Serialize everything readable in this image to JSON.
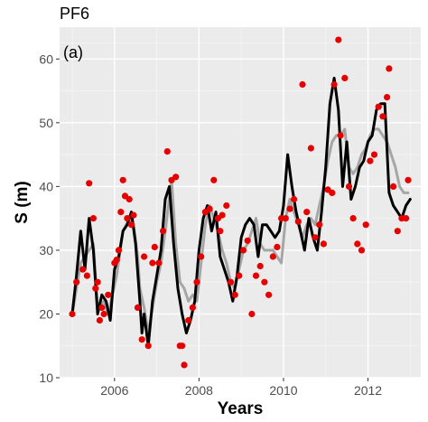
{
  "chart_data": {
    "type": "line",
    "title": "PF6",
    "panel_label": "(a)",
    "xlabel": "Years",
    "ylabel": "S (m)",
    "xlim": [
      2004.7,
      2013.25
    ],
    "ylim": [
      10,
      65
    ],
    "xticks": [
      2006,
      2008,
      2010,
      2012
    ],
    "yticks": [
      10,
      20,
      30,
      40,
      50,
      60
    ],
    "grid": true,
    "legend": "none",
    "colors": {
      "panel": "#ebebeb",
      "grid_major": "#ffffff",
      "grid_minor": "#f5f5f5",
      "simulated_primary": "#000000",
      "simulated_secondary": "#a6a6a6",
      "observed": "#e60000",
      "tick": "#4d4d4d"
    },
    "series": [
      {
        "kind": "line",
        "role": "secondary",
        "x": [
          2005.0,
          2005.2,
          2005.4,
          2005.5,
          2005.6,
          2005.75,
          2005.85,
          2005.95,
          2006.05,
          2006.2,
          2006.35,
          2006.45,
          2006.55,
          2006.6,
          2006.7,
          2006.8,
          2006.9,
          2007.0,
          2007.1,
          2007.2,
          2007.35,
          2007.45,
          2007.55,
          2007.65,
          2007.75,
          2007.85,
          2007.95,
          2008.05,
          2008.15,
          2008.25,
          2008.35,
          2008.45,
          2008.55,
          2008.65,
          2008.75,
          2008.85,
          2008.95,
          2009.05,
          2009.15,
          2009.25,
          2009.35,
          2009.45,
          2009.55,
          2009.65,
          2009.75,
          2009.85,
          2009.95,
          2010.05,
          2010.15,
          2010.25,
          2010.35,
          2010.45,
          2010.55,
          2010.65,
          2010.75,
          2010.85,
          2010.95,
          2011.05,
          2011.15,
          2011.25,
          2011.35,
          2011.45,
          2011.55,
          2011.65,
          2011.75,
          2011.85,
          2011.95,
          2012.05,
          2012.15,
          2012.25,
          2012.35,
          2012.45,
          2012.55,
          2012.65,
          2012.75,
          2012.85,
          2012.95
        ],
        "y": [
          20,
          28,
          30,
          31,
          21,
          22,
          20,
          23,
          26,
          33,
          35,
          34,
          29,
          24,
          21,
          17,
          21,
          25,
          28,
          33,
          41,
          31,
          25,
          24,
          22,
          23,
          22,
          28,
          34,
          37,
          35,
          33,
          30,
          28,
          25,
          24,
          27,
          30,
          31,
          33,
          35,
          31,
          30,
          30,
          30,
          29,
          28,
          35,
          38,
          36,
          34,
          32,
          34,
          35,
          34,
          37,
          40,
          44,
          47,
          48,
          48,
          49,
          43,
          42,
          43,
          45,
          46,
          48,
          49,
          49,
          48,
          47,
          45,
          43,
          40,
          39,
          39
        ]
      },
      {
        "kind": "line",
        "role": "primary",
        "x": [
          2005.0,
          2005.1,
          2005.2,
          2005.3,
          2005.4,
          2005.5,
          2005.6,
          2005.7,
          2005.8,
          2005.9,
          2006.0,
          2006.1,
          2006.2,
          2006.3,
          2006.4,
          2006.5,
          2006.6,
          2006.65,
          2006.7,
          2006.8,
          2006.9,
          2007.0,
          2007.1,
          2007.2,
          2007.3,
          2007.4,
          2007.5,
          2007.6,
          2007.7,
          2007.8,
          2007.9,
          2008.0,
          2008.1,
          2008.2,
          2008.3,
          2008.4,
          2008.5,
          2008.6,
          2008.7,
          2008.8,
          2008.9,
          2009.0,
          2009.1,
          2009.2,
          2009.3,
          2009.4,
          2009.5,
          2009.6,
          2009.7,
          2009.8,
          2009.9,
          2010.0,
          2010.1,
          2010.2,
          2010.3,
          2010.4,
          2010.5,
          2010.6,
          2010.7,
          2010.8,
          2010.9,
          2011.0,
          2011.1,
          2011.2,
          2011.3,
          2011.4,
          2011.5,
          2011.6,
          2011.7,
          2011.8,
          2011.9,
          2012.0,
          2012.1,
          2012.2,
          2012.3,
          2012.4,
          2012.5,
          2012.6,
          2012.7,
          2012.8,
          2012.9,
          2013.0
        ],
        "y": [
          20,
          26,
          33,
          27,
          35,
          30,
          20,
          23,
          22,
          19,
          27,
          29,
          33,
          34,
          36,
          31,
          22,
          17,
          20,
          15,
          22,
          26,
          30,
          38,
          40,
          31,
          24,
          20,
          17,
          19,
          22,
          30,
          35,
          37,
          33,
          36,
          29,
          27,
          25,
          22,
          26,
          32,
          34,
          35,
          34,
          29,
          34,
          34,
          33,
          32,
          33,
          37,
          45,
          40,
          36,
          33,
          30,
          35,
          32,
          30,
          36,
          43,
          53,
          57,
          52,
          40,
          47,
          38,
          40,
          43,
          44,
          47,
          48,
          52,
          53,
          53,
          39,
          37,
          36,
          35,
          37,
          38
        ]
      },
      {
        "kind": "scatter",
        "role": "observed",
        "x": [
          2005.0,
          2005.1,
          2005.25,
          2005.35,
          2005.4,
          2005.5,
          2005.55,
          2005.6,
          2005.65,
          2005.7,
          2005.75,
          2005.85,
          2006.0,
          2006.05,
          2006.1,
          2006.15,
          2006.2,
          2006.25,
          2006.3,
          2006.35,
          2006.4,
          2006.45,
          2006.55,
          2006.65,
          2006.7,
          2006.8,
          2006.9,
          2006.95,
          2007.05,
          2007.15,
          2007.25,
          2007.35,
          2007.45,
          2007.55,
          2007.6,
          2007.65,
          2007.75,
          2007.85,
          2007.95,
          2008.05,
          2008.15,
          2008.25,
          2008.35,
          2008.45,
          2008.5,
          2008.55,
          2008.65,
          2008.75,
          2008.85,
          2008.95,
          2009.05,
          2009.15,
          2009.25,
          2009.35,
          2009.45,
          2009.55,
          2009.65,
          2009.75,
          2009.85,
          2009.95,
          2010.05,
          2010.15,
          2010.25,
          2010.35,
          2010.45,
          2010.55,
          2010.65,
          2010.75,
          2010.85,
          2010.95,
          2011.05,
          2011.15,
          2011.2,
          2011.3,
          2011.35,
          2011.45,
          2011.55,
          2011.65,
          2011.75,
          2011.85,
          2011.95,
          2012.05,
          2012.15,
          2012.25,
          2012.35,
          2012.45,
          2012.5,
          2012.6,
          2012.7,
          2012.8,
          2012.9,
          2012.95
        ],
        "y": [
          20,
          25,
          27,
          26,
          40.5,
          35,
          24,
          25,
          19,
          21,
          20,
          23,
          28,
          28.5,
          30,
          36,
          41,
          38.5,
          35,
          38,
          34,
          35.5,
          21,
          16,
          29,
          15,
          28,
          30.5,
          28,
          33,
          45.5,
          41,
          41.5,
          15,
          15,
          12,
          19,
          21,
          25,
          29,
          36,
          36.5,
          41,
          35,
          33,
          35.5,
          37,
          25,
          23,
          26,
          30,
          31.5,
          20,
          26,
          27.5,
          25,
          23,
          29,
          30.5,
          35,
          35,
          36.5,
          38,
          34.5,
          56,
          36,
          46,
          32,
          34,
          31,
          39.5,
          39,
          56,
          63,
          48,
          57,
          40,
          35,
          31,
          30,
          34,
          44,
          45,
          52.5,
          51,
          54,
          58.5,
          40,
          33,
          35,
          35,
          41
        ]
      }
    ]
  }
}
